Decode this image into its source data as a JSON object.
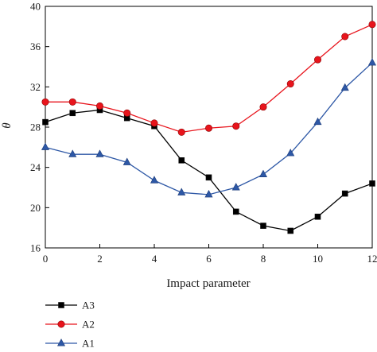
{
  "chart_data": {
    "type": "line",
    "xlabel": "Impact parameter",
    "ylabel": "θ",
    "xlim": [
      0,
      12
    ],
    "ylim": [
      16,
      40
    ],
    "xticks": [
      0,
      2,
      4,
      6,
      8,
      10,
      12
    ],
    "yticks": [
      16,
      20,
      24,
      28,
      32,
      36,
      40
    ],
    "x": [
      0,
      1,
      2,
      3,
      4,
      5,
      6,
      7,
      8,
      9,
      10,
      11,
      12
    ],
    "grid": false,
    "legend_position": "bottom-left",
    "series": [
      {
        "name": "A3",
        "color": "#000000",
        "marker": "square",
        "values": [
          28.5,
          29.4,
          29.7,
          28.9,
          28.1,
          24.7,
          23.0,
          19.6,
          18.2,
          17.7,
          19.1,
          21.4,
          22.4
        ]
      },
      {
        "name": "A2",
        "color": "#e8141c",
        "marker": "circle",
        "values": [
          30.5,
          30.5,
          30.1,
          29.4,
          28.4,
          27.5,
          27.9,
          28.1,
          30.0,
          32.3,
          34.7,
          37.0,
          38.2
        ]
      },
      {
        "name": "A1",
        "color": "#2e58a6",
        "marker": "triangle",
        "values": [
          26.0,
          25.3,
          25.3,
          24.5,
          22.7,
          21.5,
          21.3,
          22.0,
          23.3,
          25.4,
          28.5,
          31.9,
          34.4
        ]
      }
    ]
  }
}
